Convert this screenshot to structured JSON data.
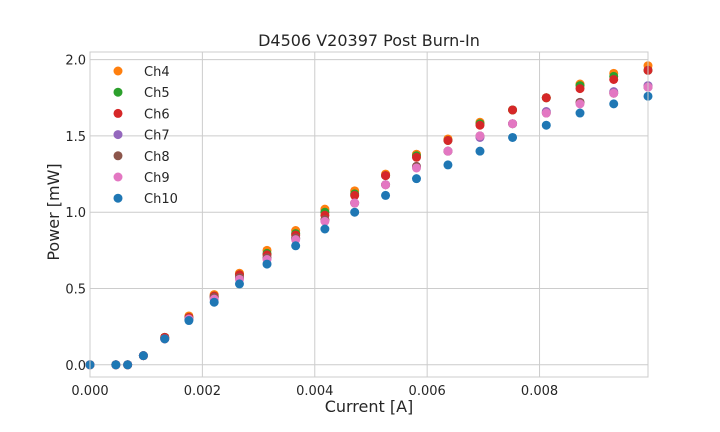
{
  "chart_data": {
    "type": "scatter",
    "title": "D4506 V20397 Post Burn-In",
    "xlabel": "Current [A]",
    "ylabel": "Power [mW]",
    "xlim": [
      0,
      0.00993
    ],
    "ylim": [
      -0.08,
      2.05
    ],
    "grid": true,
    "legend_position": "upper-left",
    "x_ticks": [
      "0.000",
      "0.002",
      "0.004",
      "0.006",
      "0.008"
    ],
    "x_tick_values": [
      0,
      0.002,
      0.004,
      0.006,
      0.008
    ],
    "y_ticks": [
      "0.0",
      "0.5",
      "1.0",
      "1.5",
      "2.0"
    ],
    "y_tick_values": [
      0,
      0.5,
      1.0,
      1.5,
      2.0
    ],
    "x": [
      0.0,
      0.00046,
      0.00067,
      0.00095,
      0.00133,
      0.00176,
      0.00221,
      0.00266,
      0.00315,
      0.00366,
      0.00418,
      0.00471,
      0.00526,
      0.00581,
      0.00637,
      0.00694,
      0.00752,
      0.00812,
      0.00872,
      0.00932,
      0.00993
    ],
    "series": [
      {
        "name": "Ch4",
        "color": "#ff7f0e",
        "values": [
          0.0,
          0.0,
          0.0,
          0.06,
          0.18,
          0.32,
          0.46,
          0.6,
          0.75,
          0.88,
          1.02,
          1.14,
          1.25,
          1.38,
          1.48,
          1.59,
          1.67,
          1.75,
          1.84,
          1.91,
          1.96
        ]
      },
      {
        "name": "Ch5",
        "color": "#2ca02c",
        "values": [
          0.0,
          0.0,
          0.0,
          0.06,
          0.18,
          0.31,
          0.45,
          0.59,
          0.73,
          0.86,
          1.0,
          1.12,
          1.24,
          1.37,
          1.47,
          1.58,
          1.67,
          1.75,
          1.83,
          1.89,
          1.93
        ]
      },
      {
        "name": "Ch6",
        "color": "#d62728",
        "values": [
          0.0,
          0.0,
          0.0,
          0.06,
          0.18,
          0.31,
          0.45,
          0.59,
          0.72,
          0.85,
          0.98,
          1.11,
          1.24,
          1.36,
          1.47,
          1.57,
          1.67,
          1.75,
          1.81,
          1.87,
          1.93
        ]
      },
      {
        "name": "Ch7",
        "color": "#9467bd",
        "values": [
          0.0,
          0.0,
          0.0,
          0.06,
          0.17,
          0.3,
          0.44,
          0.57,
          0.7,
          0.83,
          0.95,
          1.06,
          1.18,
          1.3,
          1.4,
          1.49,
          1.58,
          1.66,
          1.72,
          1.79,
          1.83
        ]
      },
      {
        "name": "Ch8",
        "color": "#8c564b",
        "values": [
          0.0,
          0.0,
          0.0,
          0.06,
          0.17,
          0.3,
          0.44,
          0.57,
          0.7,
          0.83,
          0.95,
          1.06,
          1.18,
          1.3,
          1.4,
          1.5,
          1.58,
          1.65,
          1.72,
          1.78,
          1.82
        ]
      },
      {
        "name": "Ch9",
        "color": "#e377c2",
        "values": [
          0.0,
          0.0,
          0.0,
          0.06,
          0.17,
          0.3,
          0.43,
          0.56,
          0.69,
          0.82,
          0.94,
          1.06,
          1.18,
          1.29,
          1.4,
          1.5,
          1.58,
          1.65,
          1.71,
          1.78,
          1.82
        ]
      },
      {
        "name": "Ch10",
        "color": "#1f77b4",
        "values": [
          0.0,
          0.0,
          0.0,
          0.06,
          0.17,
          0.29,
          0.41,
          0.53,
          0.66,
          0.78,
          0.89,
          1.0,
          1.11,
          1.22,
          1.31,
          1.4,
          1.49,
          1.57,
          1.65,
          1.71,
          1.76
        ]
      }
    ]
  }
}
